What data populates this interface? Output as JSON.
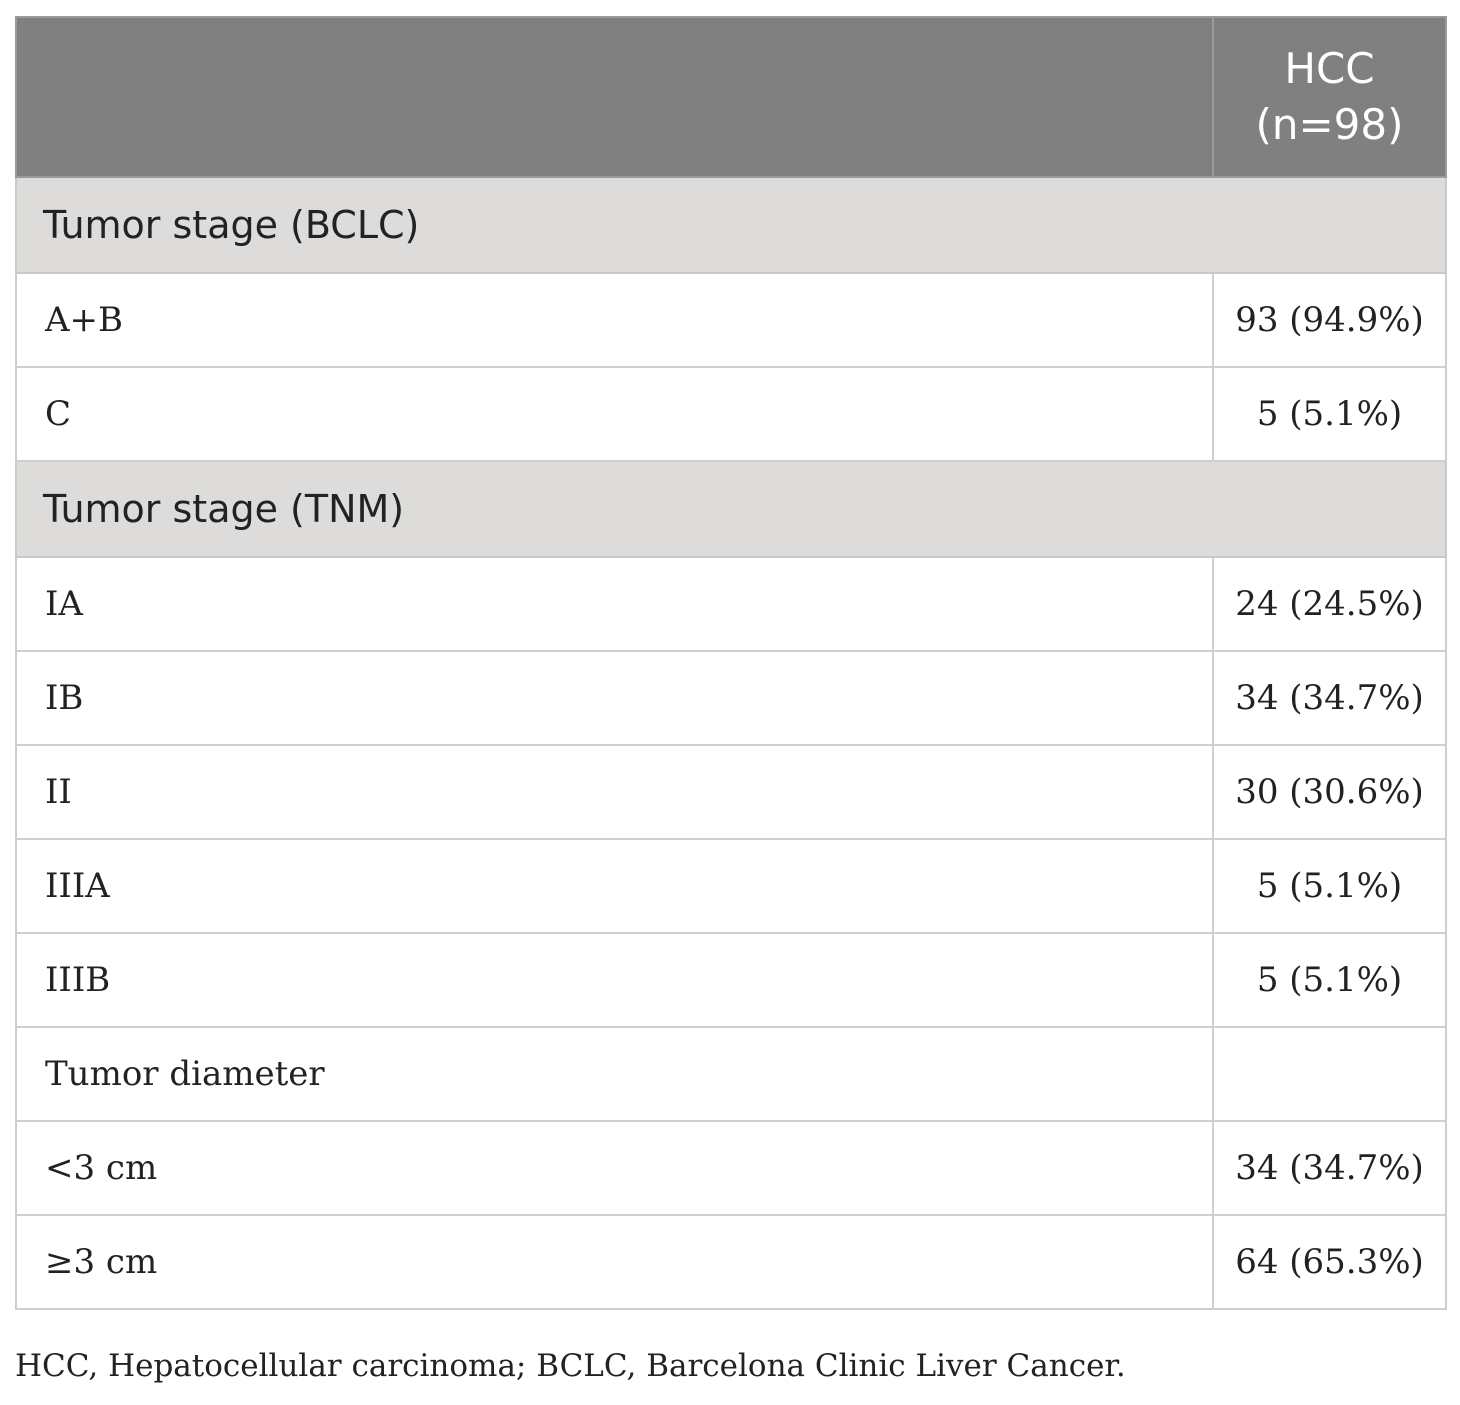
{
  "table": {
    "header": {
      "label_col": "",
      "value_col_line1": "HCC",
      "value_col_line2": "(n=98)"
    },
    "sections": [
      {
        "title": "Tumor stage (BCLC)",
        "rows": [
          {
            "label": "A+B",
            "value": "93 (94.9%)"
          },
          {
            "label": "C",
            "value": "5 (5.1%)"
          }
        ]
      },
      {
        "title": "Tumor stage (TNM)",
        "rows": [
          {
            "label": "IA",
            "value": "24 (24.5%)"
          },
          {
            "label": "IB",
            "value": "34 (34.7%)"
          },
          {
            "label": "II",
            "value": "30 (30.6%)"
          },
          {
            "label": "IIIA",
            "value": "5 (5.1%)"
          },
          {
            "label": "IIIB",
            "value": "5 (5.1%)"
          },
          {
            "label": "Tumor diameter",
            "value": ""
          },
          {
            "label": "<3 cm",
            "value": "34 (34.7%)"
          },
          {
            "label": "≥3 cm",
            "value": "64 (65.3%)"
          }
        ]
      }
    ]
  },
  "footnote": "HCC, Hepatocellular carcinoma; BCLC, Barcelona Clinic Liver Cancer.",
  "colors": {
    "header_bg": "#808080",
    "section_bg": "#dddcdb",
    "grid": "#cfcfcf"
  }
}
